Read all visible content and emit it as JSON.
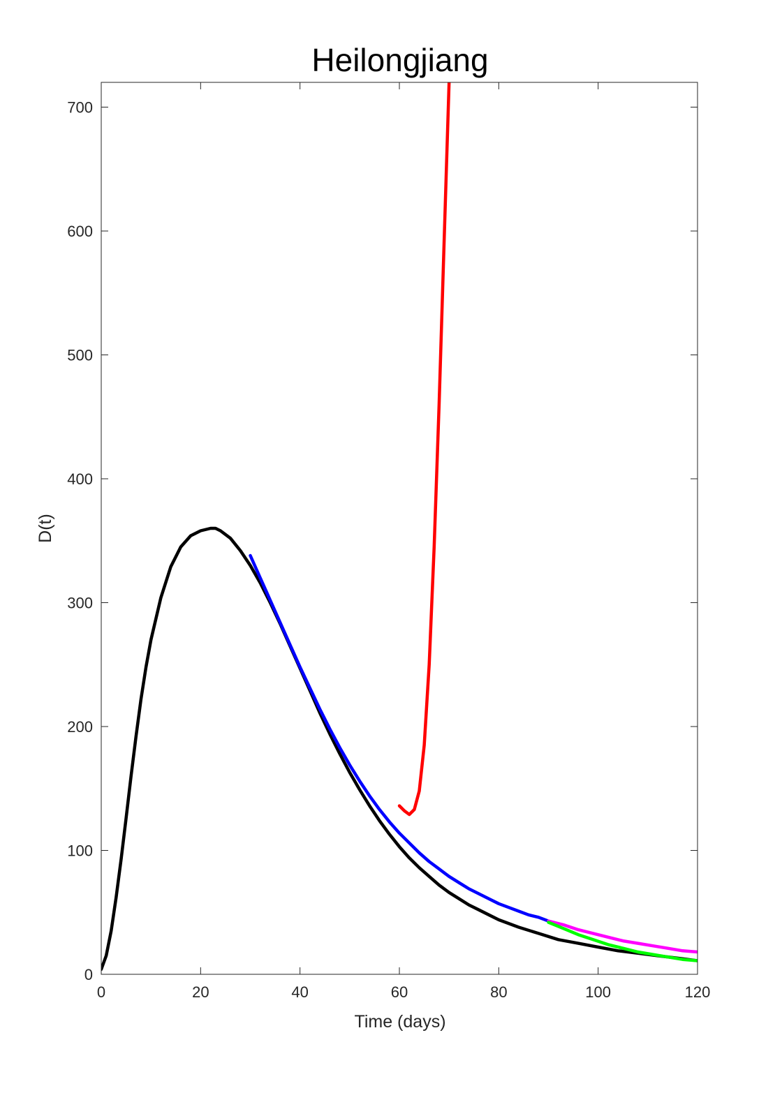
{
  "chart_data": {
    "type": "line",
    "title": "Heilongjiang",
    "xlabel": "Time (days)",
    "ylabel": "D(t)",
    "xlim": [
      0,
      120
    ],
    "ylim": [
      0,
      720
    ],
    "xticks": [
      0,
      20,
      40,
      60,
      80,
      100,
      120
    ],
    "yticks": [
      0,
      100,
      200,
      300,
      400,
      500,
      600,
      700
    ],
    "grid": false,
    "legend": "none",
    "series": [
      {
        "color": "#000000",
        "x": [
          0,
          1,
          2,
          3,
          4,
          5,
          6,
          7,
          8,
          9,
          10,
          12,
          14,
          16,
          18,
          20,
          22,
          23,
          24,
          26,
          28,
          30,
          32,
          34,
          36,
          38,
          40,
          42,
          44,
          46,
          48,
          50,
          52,
          54,
          56,
          58,
          60,
          62,
          64,
          66,
          68,
          70,
          72,
          74,
          76,
          78,
          80,
          84,
          88,
          92,
          96,
          100,
          104,
          108,
          112,
          116,
          120
        ],
        "y": [
          4,
          15,
          35,
          62,
          93,
          126,
          160,
          192,
          222,
          248,
          270,
          304,
          329,
          345,
          354,
          358,
          360,
          360,
          358,
          352,
          342,
          330,
          316,
          300,
          283,
          265,
          247,
          229,
          211,
          194,
          178,
          163,
          149,
          136,
          124,
          113,
          103,
          94,
          86,
          79,
          72,
          66,
          61,
          56,
          52,
          48,
          44,
          38,
          33,
          28,
          25,
          22,
          19,
          17,
          15,
          13,
          11
        ]
      },
      {
        "color": "#0000ff",
        "x": [
          30,
          32,
          34,
          36,
          38,
          40,
          42,
          44,
          46,
          48,
          50,
          52,
          54,
          56,
          58,
          60,
          62,
          64,
          66,
          68,
          70,
          72,
          74,
          76,
          78,
          80,
          82,
          84,
          86,
          88,
          90
        ],
        "y": [
          338,
          320,
          302,
          284,
          266,
          248,
          231,
          214,
          198,
          183,
          169,
          156,
          144,
          133,
          123,
          114,
          106,
          98,
          91,
          85,
          79,
          74,
          69,
          65,
          61,
          57,
          54,
          51,
          48,
          46,
          43
        ]
      },
      {
        "color": "#ff0000",
        "x": [
          60,
          61,
          62,
          63,
          64,
          65,
          66,
          67,
          68,
          69,
          70,
          70.5
        ],
        "y": [
          136,
          132,
          129,
          133,
          148,
          185,
          250,
          345,
          460,
          590,
          720,
          760
        ]
      },
      {
        "color": "#ff00ff",
        "x": [
          90,
          93,
          96,
          99,
          102,
          105,
          108,
          111,
          114,
          117,
          120
        ],
        "y": [
          43,
          40,
          36,
          33,
          30,
          27,
          25,
          23,
          21,
          19,
          18
        ]
      },
      {
        "color": "#00ff00",
        "x": [
          90,
          93,
          96,
          99,
          102,
          105,
          108,
          111,
          114,
          117,
          120
        ],
        "y": [
          42,
          37,
          32,
          28,
          24,
          21,
          18,
          16,
          14,
          12,
          11
        ]
      }
    ]
  }
}
